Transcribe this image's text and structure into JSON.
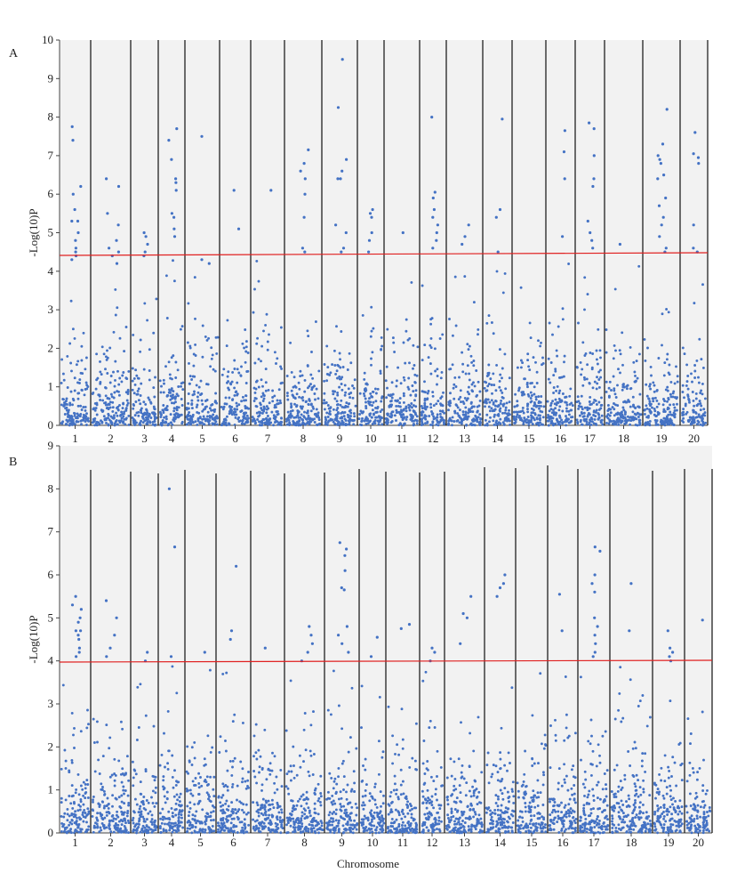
{
  "chart_data": [
    {
      "type": "scatter",
      "panel_label": "A",
      "ylabel": "-Log(10)P",
      "xlabel": "",
      "ylim": [
        0,
        10
      ],
      "yticks": [
        0,
        1,
        2,
        3,
        4,
        5,
        6,
        7,
        8,
        9,
        10
      ],
      "threshold": 4.45,
      "point_color": "#4472C4",
      "threshold_color": "#E02020",
      "chromosomes": [
        "1",
        "2",
        "3",
        "4",
        "5",
        "6",
        "7",
        "8",
        "9",
        "10",
        "11",
        "12",
        "13",
        "14",
        "15",
        "16",
        "17",
        "18",
        "19",
        "20"
      ],
      "peaks": [
        {
          "chr": "1",
          "values": [
            6.2,
            5.6,
            5.3,
            5.0,
            4.8,
            4.6,
            4.4,
            4.3,
            7.75,
            7.4,
            6.0,
            5.3,
            4.5
          ]
        },
        {
          "chr": "2",
          "values": [
            6.4,
            6.2,
            5.5,
            5.2,
            4.8,
            4.6,
            4.5,
            4.4,
            4.2
          ]
        },
        {
          "chr": "3",
          "values": [
            5.0,
            4.9,
            4.7,
            4.5,
            4.4
          ]
        },
        {
          "chr": "4",
          "values": [
            7.7,
            7.4,
            6.9,
            6.4,
            6.3,
            6.1,
            5.5,
            5.4,
            5.1,
            4.9
          ]
        },
        {
          "chr": "5",
          "values": [
            7.5,
            4.3,
            4.2
          ]
        },
        {
          "chr": "6",
          "values": [
            6.1,
            5.1
          ]
        },
        {
          "chr": "7",
          "values": [
            6.1
          ]
        },
        {
          "chr": "8",
          "values": [
            7.15,
            6.8,
            6.6,
            6.4,
            6.0,
            5.4,
            4.6,
            4.5
          ]
        },
        {
          "chr": "9",
          "values": [
            9.5,
            8.25,
            6.9,
            6.6,
            6.4,
            5.2,
            5.0,
            4.6,
            4.5,
            6.4
          ]
        },
        {
          "chr": "10",
          "values": [
            5.6,
            5.5,
            5.4,
            5.0,
            4.8,
            4.5
          ]
        },
        {
          "chr": "11",
          "values": [
            5.0
          ]
        },
        {
          "chr": "12",
          "values": [
            8.0,
            6.05,
            5.9,
            5.6,
            5.4,
            5.2,
            5.0,
            4.8,
            4.6
          ]
        },
        {
          "chr": "13",
          "values": [
            5.2,
            4.9,
            4.7
          ]
        },
        {
          "chr": "14",
          "values": [
            7.95,
            5.6,
            5.4,
            4.5
          ]
        },
        {
          "chr": "15",
          "values": []
        },
        {
          "chr": "16",
          "values": [
            7.65,
            7.1,
            6.4,
            4.9
          ]
        },
        {
          "chr": "17",
          "values": [
            7.85,
            7.7,
            7.0,
            6.4,
            6.2,
            5.3,
            5.0,
            4.8,
            4.6
          ]
        },
        {
          "chr": "18",
          "values": [
            4.7
          ]
        },
        {
          "chr": "19",
          "values": [
            8.2,
            7.3,
            7.0,
            6.9,
            6.8,
            6.5,
            6.4,
            5.9,
            5.7,
            5.4,
            5.2,
            4.9,
            4.6,
            4.5
          ]
        },
        {
          "chr": "20",
          "values": [
            7.6,
            7.05,
            6.95,
            6.8,
            5.2,
            4.6,
            4.5
          ]
        }
      ]
    },
    {
      "type": "scatter",
      "panel_label": "B",
      "ylabel": "-Log(10)P",
      "xlabel": "Chromosome",
      "ylim": [
        0,
        9
      ],
      "yticks": [
        0,
        1,
        2,
        3,
        4,
        5,
        6,
        7,
        8,
        9
      ],
      "threshold": 4.0,
      "point_color": "#4472C4",
      "threshold_color": "#E02020",
      "chromosomes": [
        "1",
        "2",
        "3",
        "4",
        "5",
        "6",
        "7",
        "8",
        "9",
        "10",
        "11",
        "12",
        "13",
        "14",
        "15",
        "16",
        "17",
        "18",
        "19",
        "20"
      ],
      "peaks": [
        {
          "chr": "1",
          "values": [
            5.5,
            5.3,
            5.2,
            5.0,
            4.9,
            4.7,
            4.6,
            4.5,
            4.3,
            4.2,
            4.1,
            4.7
          ]
        },
        {
          "chr": "2",
          "values": [
            5.4,
            5.0,
            4.6,
            4.3,
            4.1
          ]
        },
        {
          "chr": "3",
          "values": [
            4.2,
            4.0
          ]
        },
        {
          "chr": "4",
          "values": [
            8.0,
            6.65,
            4.1
          ]
        },
        {
          "chr": "5",
          "values": [
            4.2
          ]
        },
        {
          "chr": "6",
          "values": [
            6.2,
            4.7,
            4.5
          ]
        },
        {
          "chr": "7",
          "values": [
            4.3
          ]
        },
        {
          "chr": "8",
          "values": [
            4.8,
            4.6,
            4.4,
            4.2,
            4.0
          ]
        },
        {
          "chr": "9",
          "values": [
            6.75,
            6.6,
            6.45,
            6.1,
            5.7,
            5.65,
            4.8,
            4.6,
            4.4,
            4.2
          ]
        },
        {
          "chr": "10",
          "values": [
            4.55,
            4.1
          ]
        },
        {
          "chr": "11",
          "values": [
            4.85,
            4.75
          ]
        },
        {
          "chr": "12",
          "values": [
            4.3,
            4.2,
            4.0
          ]
        },
        {
          "chr": "13",
          "values": [
            5.5,
            5.1,
            5.0,
            4.4
          ]
        },
        {
          "chr": "14",
          "values": [
            6.0,
            5.8,
            5.7,
            5.5
          ]
        },
        {
          "chr": "15",
          "values": []
        },
        {
          "chr": "16",
          "values": [
            5.55,
            4.7
          ]
        },
        {
          "chr": "17",
          "values": [
            6.65,
            6.55,
            6.0,
            5.8,
            5.6,
            5.0,
            4.8,
            4.6,
            4.4,
            4.2,
            4.1
          ]
        },
        {
          "chr": "18",
          "values": [
            5.8,
            4.7
          ]
        },
        {
          "chr": "19",
          "values": [
            4.7,
            4.3,
            4.2,
            4.1,
            4.0
          ]
        },
        {
          "chr": "20",
          "values": [
            4.95
          ]
        }
      ]
    }
  ]
}
